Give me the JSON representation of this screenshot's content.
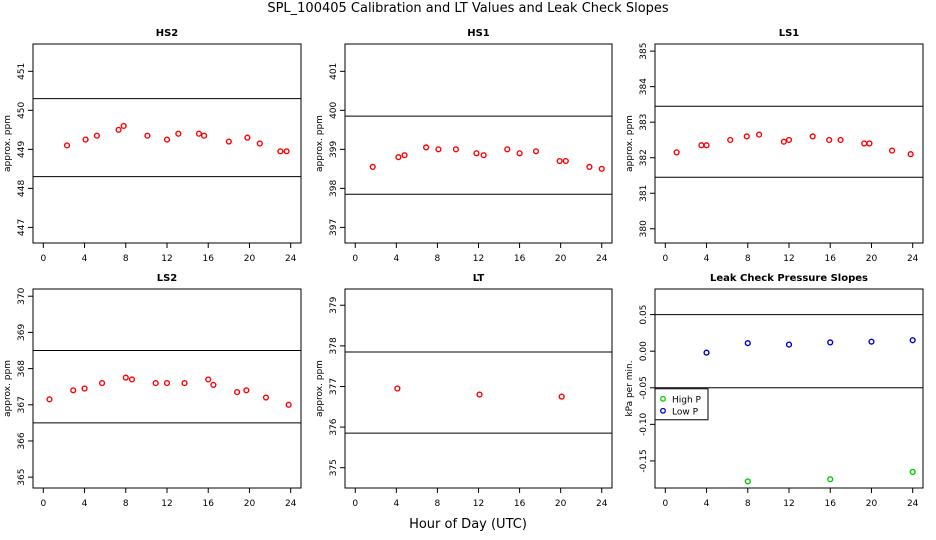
{
  "title": "SPL_100405  Calibration and LT Values and Leak Check Slopes",
  "xlabel": "Hour of Day (UTC)",
  "chart_data": [
    {
      "type": "scatter",
      "title": "HS2",
      "xlabel": "",
      "ylabel": "approx. ppm",
      "xlim": [
        -1,
        25
      ],
      "ylim": [
        446.6,
        451.7
      ],
      "xticks": [
        0,
        4,
        8,
        12,
        16,
        20,
        24
      ],
      "yticks": [
        447,
        448,
        449,
        450,
        451
      ],
      "hlines": [
        450.3,
        448.3
      ],
      "series": [
        {
          "name": "",
          "color": "#ff0000",
          "x": [
            2.3,
            4.1,
            5.2,
            7.3,
            7.8,
            10.1,
            12.0,
            13.1,
            15.1,
            15.6,
            18.0,
            19.8,
            21.0,
            23.0,
            23.6
          ],
          "y": [
            449.1,
            449.25,
            449.35,
            449.5,
            449.6,
            449.35,
            449.25,
            449.4,
            449.4,
            449.35,
            449.2,
            449.3,
            449.15,
            448.95,
            448.95
          ]
        }
      ]
    },
    {
      "type": "scatter",
      "title": "HS1",
      "xlabel": "",
      "ylabel": "approx. ppm",
      "xlim": [
        -1,
        25
      ],
      "ylim": [
        396.6,
        401.7
      ],
      "xticks": [
        0,
        4,
        8,
        12,
        16,
        20,
        24
      ],
      "yticks": [
        397,
        398,
        399,
        400,
        401
      ],
      "hlines": [
        399.85,
        397.85
      ],
      "series": [
        {
          "name": "",
          "color": "#ff0000",
          "x": [
            1.7,
            4.2,
            4.8,
            6.9,
            8.1,
            9.8,
            11.8,
            12.5,
            14.8,
            16.0,
            17.6,
            19.9,
            20.5,
            22.8,
            24.0
          ],
          "y": [
            398.55,
            398.8,
            398.85,
            399.05,
            399.0,
            399.0,
            398.9,
            398.85,
            399.0,
            398.9,
            398.95,
            398.7,
            398.7,
            398.55,
            398.5
          ]
        }
      ]
    },
    {
      "type": "scatter",
      "title": "LS1",
      "xlabel": "",
      "ylabel": "approx. ppm",
      "xlim": [
        -1,
        25
      ],
      "ylim": [
        379.6,
        385.2
      ],
      "xticks": [
        0,
        4,
        8,
        12,
        16,
        20,
        24
      ],
      "yticks": [
        380,
        381,
        382,
        383,
        384,
        385
      ],
      "hlines": [
        383.45,
        381.45
      ],
      "series": [
        {
          "name": "",
          "color": "#ff0000",
          "x": [
            1.1,
            3.5,
            4.0,
            6.3,
            7.9,
            9.1,
            11.5,
            12.0,
            14.3,
            15.9,
            17.0,
            19.3,
            19.8,
            22.0,
            23.8
          ],
          "y": [
            382.15,
            382.35,
            382.35,
            382.5,
            382.6,
            382.65,
            382.45,
            382.5,
            382.6,
            382.5,
            382.5,
            382.4,
            382.4,
            382.2,
            382.1
          ]
        }
      ]
    },
    {
      "type": "scatter",
      "title": "LS2",
      "xlabel": "",
      "ylabel": "approx. ppm",
      "xlim": [
        -1,
        25
      ],
      "ylim": [
        364.7,
        370.2
      ],
      "xticks": [
        0,
        4,
        8,
        12,
        16,
        20,
        24
      ],
      "yticks": [
        365,
        366,
        367,
        368,
        369,
        370
      ],
      "hlines": [
        368.5,
        366.5
      ],
      "series": [
        {
          "name": "",
          "color": "#ff0000",
          "x": [
            0.6,
            2.9,
            4.0,
            5.7,
            8.0,
            8.6,
            10.9,
            12.0,
            13.7,
            16.0,
            16.5,
            18.8,
            19.7,
            21.6,
            23.8
          ],
          "y": [
            367.15,
            367.4,
            367.45,
            367.6,
            367.75,
            367.7,
            367.6,
            367.6,
            367.6,
            367.7,
            367.55,
            367.35,
            367.4,
            367.2,
            367.0
          ]
        }
      ]
    },
    {
      "type": "scatter",
      "title": "LT",
      "xlabel": "",
      "ylabel": "approx. ppm",
      "xlim": [
        -1,
        25
      ],
      "ylim": [
        374.5,
        379.4
      ],
      "xticks": [
        0,
        4,
        8,
        12,
        16,
        20,
        24
      ],
      "yticks": [
        375,
        376,
        377,
        378,
        379
      ],
      "hlines": [
        377.85,
        375.85
      ],
      "series": [
        {
          "name": "",
          "color": "#ff0000",
          "x": [
            4.1,
            12.1,
            20.1
          ],
          "y": [
            376.95,
            376.8,
            376.75
          ]
        }
      ]
    },
    {
      "type": "scatter",
      "title": "Leak Check Pressure Slopes",
      "xlabel": "",
      "ylabel": "kPa per min.",
      "xlim": [
        -1,
        25
      ],
      "ylim": [
        -0.187,
        0.085
      ],
      "xticks": [
        0,
        4,
        8,
        12,
        16,
        20,
        24
      ],
      "yticks": [
        0.05,
        0.0,
        -0.05,
        -0.1,
        -0.15
      ],
      "ytick_labels": [
        "0.05",
        "0.00",
        "-0.05",
        "-0.10",
        "-0.15"
      ],
      "hlines": [
        0.05,
        -0.05
      ],
      "legend": "left",
      "series": [
        {
          "name": "High P",
          "color": "#00cc00",
          "x": [
            8.0,
            16.0,
            24.0
          ],
          "y": [
            -0.178,
            -0.175,
            -0.165
          ]
        },
        {
          "name": "Low P",
          "color": "#0000cc",
          "x": [
            4.0,
            8.0,
            12.0,
            16.0,
            20.0,
            24.0
          ],
          "y": [
            -0.002,
            0.011,
            0.009,
            0.012,
            0.013,
            0.015
          ]
        }
      ]
    }
  ]
}
